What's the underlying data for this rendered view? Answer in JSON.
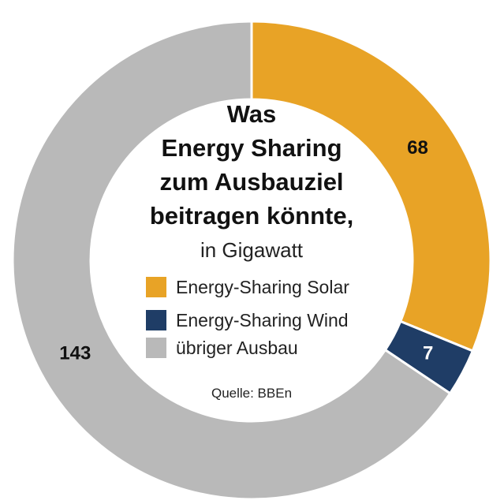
{
  "chart_data": {
    "type": "pie",
    "donut": true,
    "title_lines": [
      "Was",
      "Energy Sharing",
      "zum Ausbauziel",
      "beitragen könnte,"
    ],
    "subtitle": "in Gigawatt",
    "unit": "Gigawatt",
    "categories": [
      "Energy-Sharing Solar",
      "Energy-Sharing Wind",
      "übriger Ausbau"
    ],
    "values": [
      68,
      7,
      143
    ],
    "colors": [
      "#E8A326",
      "#1F3D66",
      "#B9B9B9"
    ],
    "label_colors": [
      "#111111",
      "#ffffff",
      "#111111"
    ],
    "labels": [
      "68",
      "7",
      "143"
    ],
    "legend_position": "center",
    "source": "Quelle: BBEn"
  }
}
